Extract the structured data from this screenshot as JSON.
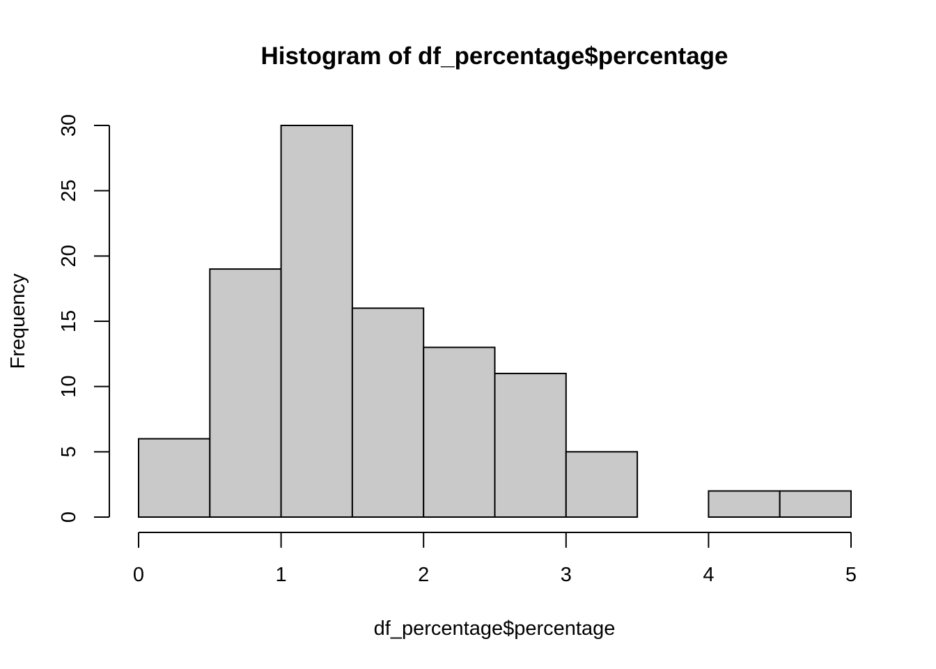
{
  "chart_data": {
    "type": "bar",
    "title": "Histogram of df_percentage$percentage",
    "xlabel": "df_percentage$percentage",
    "ylabel": "Frequency",
    "bins": [
      {
        "from": 0.0,
        "to": 0.5,
        "count": 6
      },
      {
        "from": 0.5,
        "to": 1.0,
        "count": 19
      },
      {
        "from": 1.0,
        "to": 1.5,
        "count": 30
      },
      {
        "from": 1.5,
        "to": 2.0,
        "count": 16
      },
      {
        "from": 2.0,
        "to": 2.5,
        "count": 13
      },
      {
        "from": 2.5,
        "to": 3.0,
        "count": 11
      },
      {
        "from": 3.0,
        "to": 3.5,
        "count": 5
      },
      {
        "from": 3.5,
        "to": 4.0,
        "count": 0
      },
      {
        "from": 4.0,
        "to": 4.5,
        "count": 2
      },
      {
        "from": 4.5,
        "to": 5.0,
        "count": 2
      }
    ],
    "xlim": [
      0,
      5
    ],
    "ylim": [
      0,
      30
    ],
    "xticks": [
      "0",
      "1",
      "2",
      "3",
      "4",
      "5"
    ],
    "yticks": [
      "0",
      "5",
      "10",
      "15",
      "20",
      "25",
      "30"
    ],
    "grid": false,
    "bar_color": "#c9c9c9",
    "edge_color": "#000000"
  }
}
